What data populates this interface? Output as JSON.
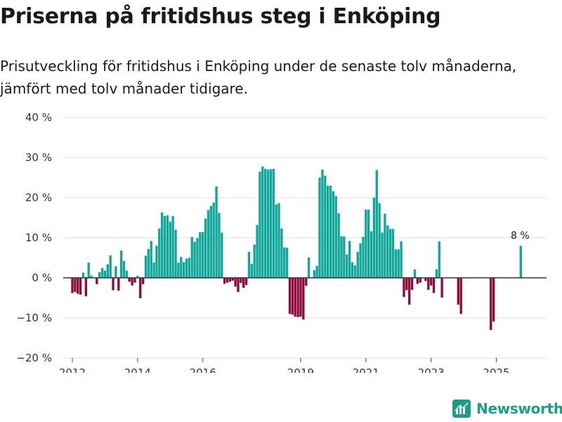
{
  "title": "Priserna på fritidshus steg i Enköping",
  "subtitle": "Prisutveckling för fritidshus i Enköping under de senaste tolv månaderna, jämfört med tolv månader tidigare.",
  "brand": {
    "name": "Newsworthy",
    "icon": "bar-chart-logo-icon",
    "color": "#1e9c8b"
  },
  "colors": {
    "positive": "#10a69a",
    "negative": "#8c0b3c",
    "grid": "#dddddd",
    "zero": "#333333"
  },
  "chart_data": {
    "type": "bar",
    "title": "Priserna på fritidshus steg i Enköping",
    "xlabel": "",
    "ylabel": "",
    "ylim": [
      -20,
      40
    ],
    "yticks": [
      -20,
      -10,
      0,
      10,
      20,
      30,
      40
    ],
    "ytick_labels": [
      "−20 %",
      "−10 %",
      "0 %",
      "10 %",
      "20 %",
      "30 %",
      "40 %"
    ],
    "xtick_labels": [
      "2012",
      "2014",
      "2016",
      "2019",
      "2021",
      "2023",
      "2025"
    ],
    "xtick_positions": [
      2012,
      2014,
      2016,
      2019,
      2021,
      2023,
      2025
    ],
    "grid": true,
    "series": [
      {
        "name": "Prisutveckling",
        "values": [
          [
            2012.0,
            -3.8
          ],
          [
            2012.083,
            -3.5
          ],
          [
            2012.167,
            -4.0
          ],
          [
            2012.25,
            -4.2
          ],
          [
            2012.333,
            1.3
          ],
          [
            2012.417,
            -4.6
          ],
          [
            2012.5,
            3.8
          ],
          [
            2012.583,
            0.6
          ],
          [
            2012.75,
            -1.6
          ],
          [
            2012.833,
            1.4
          ],
          [
            2012.917,
            2.5
          ],
          [
            2013.0,
            1.8
          ],
          [
            2013.083,
            3.4
          ],
          [
            2013.167,
            5.6
          ],
          [
            2013.25,
            -3.1
          ],
          [
            2013.333,
            2.9
          ],
          [
            2013.417,
            -3.2
          ],
          [
            2013.5,
            6.8
          ],
          [
            2013.583,
            4.2
          ],
          [
            2013.667,
            1.8
          ],
          [
            2013.75,
            -1.0
          ],
          [
            2013.833,
            -1.9
          ],
          [
            2013.917,
            -1.2
          ],
          [
            2014.0,
            0.5
          ],
          [
            2014.083,
            -5.1
          ],
          [
            2014.167,
            -1.6
          ],
          [
            2014.25,
            5.5
          ],
          [
            2014.333,
            7.2
          ],
          [
            2014.417,
            9.2
          ],
          [
            2014.5,
            3.8
          ],
          [
            2014.583,
            8.0
          ],
          [
            2014.667,
            12.3
          ],
          [
            2014.75,
            16.3
          ],
          [
            2014.833,
            15.4
          ],
          [
            2014.917,
            15.6
          ],
          [
            2015.0,
            14.0
          ],
          [
            2015.083,
            15.4
          ],
          [
            2015.167,
            12.0
          ],
          [
            2015.25,
            3.8
          ],
          [
            2015.333,
            5.2
          ],
          [
            2015.417,
            3.9
          ],
          [
            2015.5,
            4.8
          ],
          [
            2015.583,
            5.0
          ],
          [
            2015.667,
            10.2
          ],
          [
            2015.75,
            9.0
          ],
          [
            2015.833,
            9.9
          ],
          [
            2015.917,
            11.4
          ],
          [
            2016.0,
            11.4
          ],
          [
            2016.083,
            14.8
          ],
          [
            2016.167,
            16.9
          ],
          [
            2016.25,
            17.9
          ],
          [
            2016.333,
            18.8
          ],
          [
            2016.417,
            22.8
          ],
          [
            2016.5,
            16.2
          ],
          [
            2016.583,
            11.3
          ],
          [
            2016.667,
            -1.5
          ],
          [
            2016.75,
            -1.2
          ],
          [
            2016.833,
            -1.0
          ],
          [
            2016.917,
            -0.7
          ],
          [
            2017.0,
            -2.2
          ],
          [
            2017.083,
            -3.5
          ],
          [
            2017.167,
            -1.3
          ],
          [
            2017.25,
            -2.5
          ],
          [
            2017.333,
            -1.8
          ],
          [
            2017.417,
            6.5
          ],
          [
            2017.5,
            3.5
          ],
          [
            2017.583,
            8.3
          ],
          [
            2017.667,
            13.2
          ],
          [
            2017.75,
            26.5
          ],
          [
            2017.833,
            27.8
          ],
          [
            2017.917,
            27.2
          ],
          [
            2018.0,
            27.0
          ],
          [
            2018.083,
            27.1
          ],
          [
            2018.167,
            27.2
          ],
          [
            2018.25,
            18.3
          ],
          [
            2018.333,
            18.6
          ],
          [
            2018.417,
            12.3
          ],
          [
            2018.5,
            7.6
          ],
          [
            2018.583,
            7.5
          ],
          [
            2018.667,
            -9.0
          ],
          [
            2018.75,
            -9.2
          ],
          [
            2018.833,
            -9.7
          ],
          [
            2018.917,
            -9.8
          ],
          [
            2019.0,
            -9.7
          ],
          [
            2019.083,
            -10.4
          ],
          [
            2019.167,
            -2.0
          ],
          [
            2019.25,
            5.1
          ],
          [
            2019.417,
            1.9
          ],
          [
            2019.5,
            3.0
          ],
          [
            2019.583,
            25.0
          ],
          [
            2019.667,
            27.0
          ],
          [
            2019.75,
            25.5
          ],
          [
            2019.833,
            23.0
          ],
          [
            2019.917,
            23.0
          ],
          [
            2020.0,
            21.6
          ],
          [
            2020.083,
            20.4
          ],
          [
            2020.167,
            16.1
          ],
          [
            2020.25,
            10.4
          ],
          [
            2020.333,
            10.3
          ],
          [
            2020.417,
            5.8
          ],
          [
            2020.5,
            9.2
          ],
          [
            2020.583,
            3.9
          ],
          [
            2020.667,
            3.1
          ],
          [
            2020.75,
            6.5
          ],
          [
            2020.833,
            8.6
          ],
          [
            2020.917,
            10.2
          ],
          [
            2021.0,
            17.0
          ],
          [
            2021.083,
            17.0
          ],
          [
            2021.167,
            11.6
          ],
          [
            2021.25,
            20.0
          ],
          [
            2021.333,
            26.9
          ],
          [
            2021.417,
            18.6
          ],
          [
            2021.5,
            11.3
          ],
          [
            2021.583,
            16.0
          ],
          [
            2021.667,
            13.1
          ],
          [
            2021.75,
            12.2
          ],
          [
            2021.833,
            12.2
          ],
          [
            2021.917,
            7.1
          ],
          [
            2022.0,
            7.1
          ],
          [
            2022.083,
            9.1
          ],
          [
            2022.167,
            -4.8
          ],
          [
            2022.25,
            -3.1
          ],
          [
            2022.333,
            -6.7
          ],
          [
            2022.417,
            -3.0
          ],
          [
            2022.5,
            2.1
          ],
          [
            2022.583,
            -1.5
          ],
          [
            2022.667,
            -1.2
          ],
          [
            2022.833,
            -0.8
          ],
          [
            2022.917,
            -3.0
          ],
          [
            2023.0,
            -1.9
          ],
          [
            2023.083,
            -3.8
          ],
          [
            2023.167,
            2.1
          ],
          [
            2023.25,
            9.1
          ],
          [
            2023.333,
            -4.9
          ],
          [
            2023.833,
            -6.7
          ],
          [
            2023.917,
            -9.0
          ],
          [
            2024.833,
            -13.0
          ],
          [
            2024.917,
            -10.9
          ],
          [
            2025.75,
            8.0
          ]
        ]
      }
    ],
    "annotations": [
      {
        "label": "8 %",
        "x": 2025.75,
        "y": 8.0
      }
    ]
  }
}
